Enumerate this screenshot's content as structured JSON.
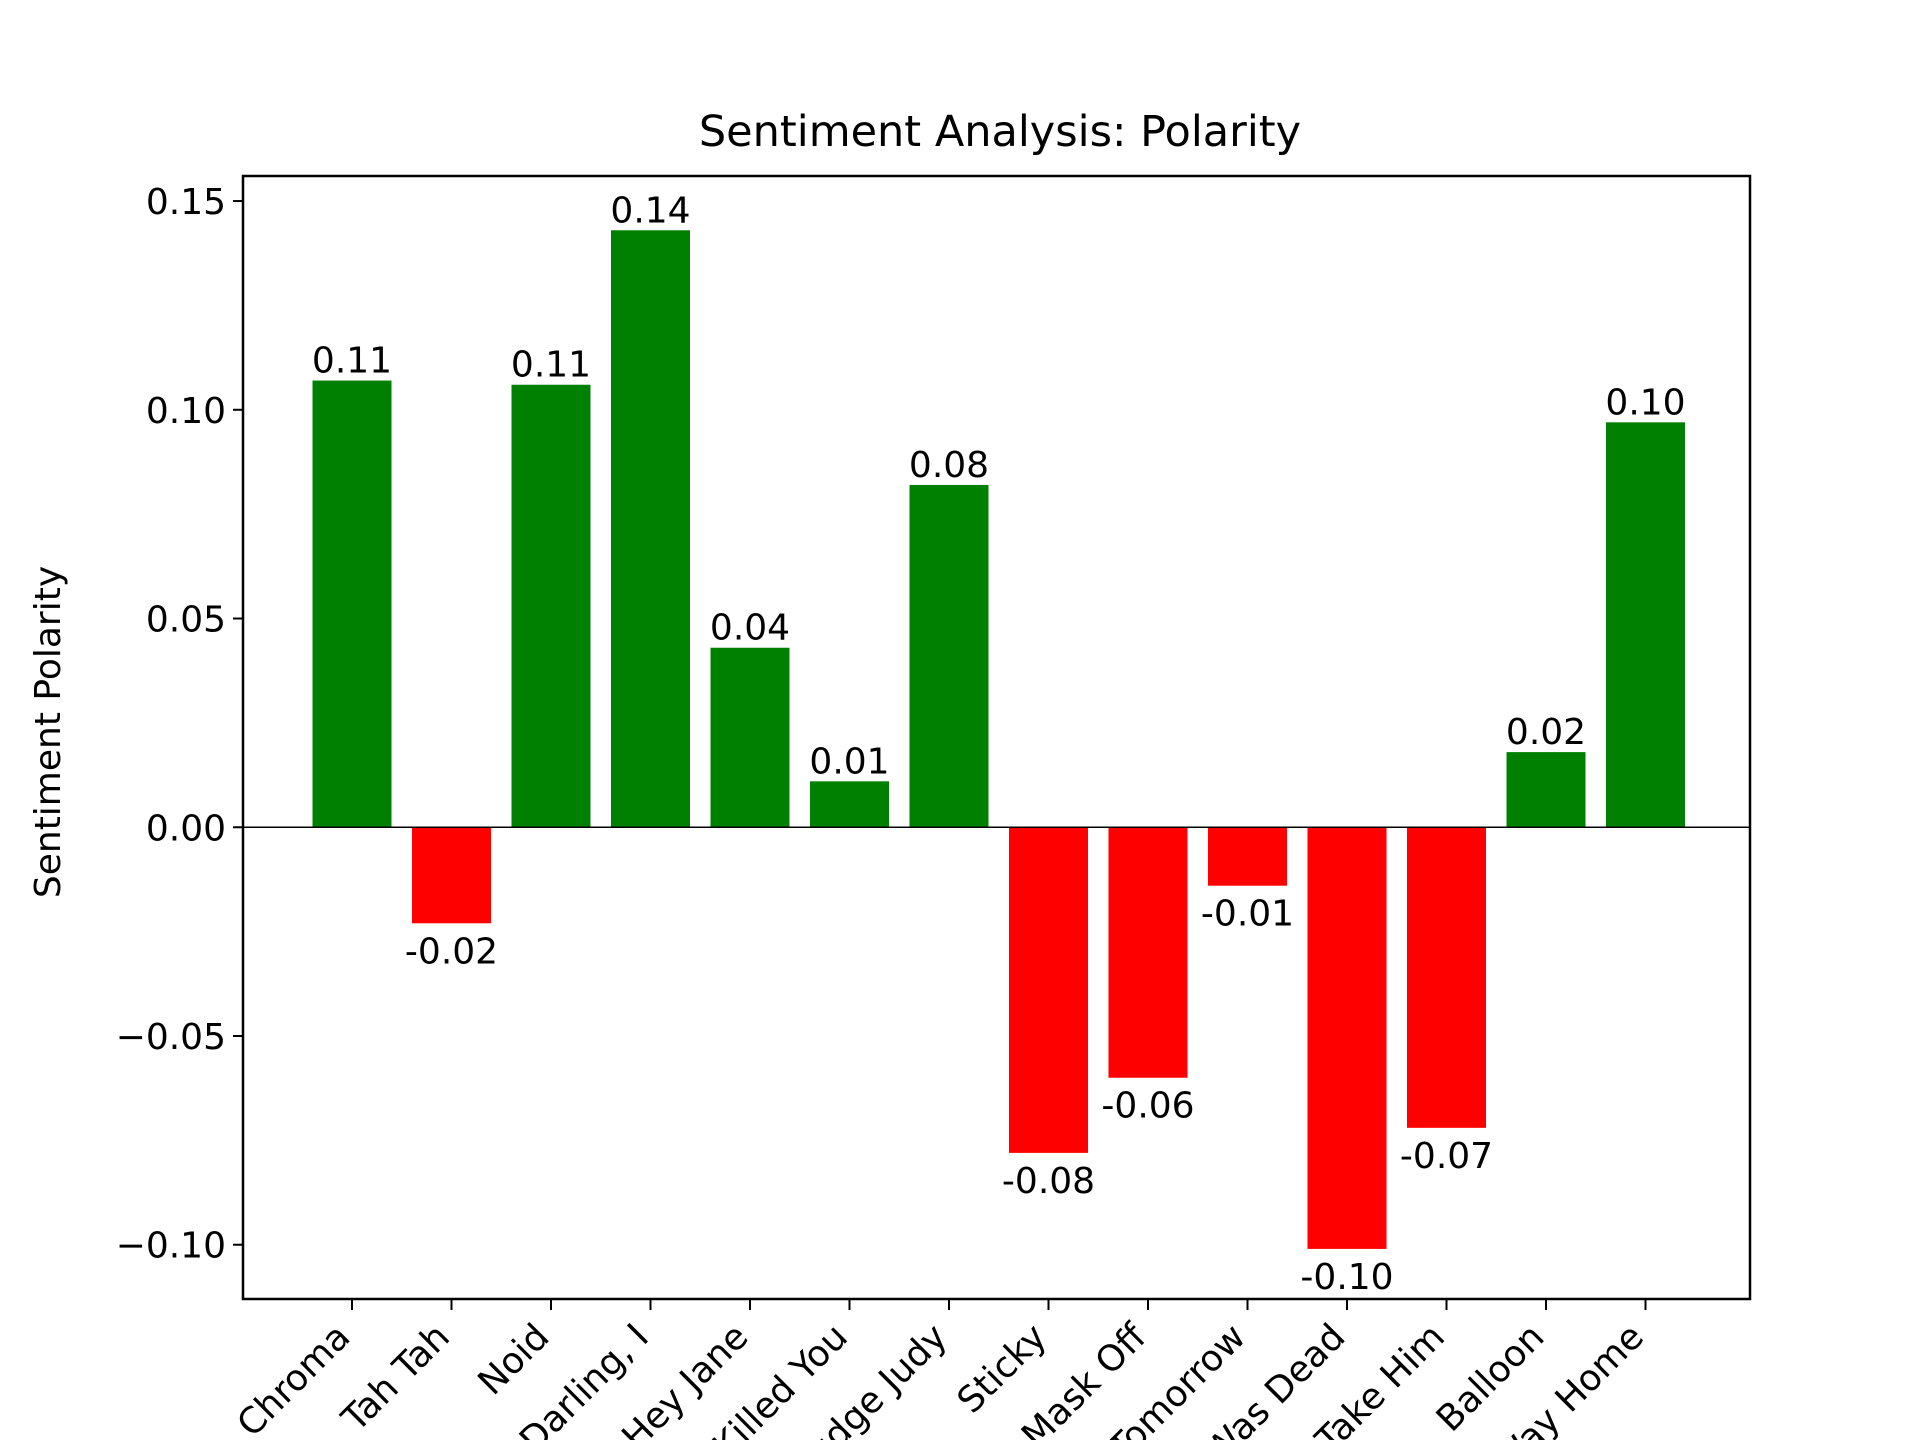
{
  "chart_data": {
    "type": "bar",
    "title": "Sentiment Analysis: Polarity",
    "xlabel": "",
    "ylabel": "Sentiment Polarity",
    "categories": [
      "Chroma",
      "Tah Tah",
      "Noid",
      "Darling, I",
      "Hey Jane",
      "Killed You",
      "Judge Judy",
      "Sticky",
      "Mask Off",
      "Tomorrow",
      "I Was Dead",
      "Take Him",
      "Balloon",
      "Way Home"
    ],
    "values": [
      0.107,
      -0.023,
      0.106,
      0.143,
      0.043,
      0.011,
      0.082,
      -0.078,
      -0.06,
      -0.014,
      -0.101,
      -0.072,
      0.018,
      0.097
    ],
    "data_labels": [
      "0.11",
      "-0.02",
      "0.11",
      "0.14",
      "0.04",
      "0.01",
      "0.08",
      "-0.08",
      "-0.06",
      "-0.01",
      "-0.10",
      "-0.07",
      "0.02",
      "0.10"
    ],
    "ylim": [
      -0.113,
      0.156
    ],
    "yticks": [
      -0.1,
      -0.05,
      0.0,
      0.05,
      0.1,
      0.15
    ],
    "ytick_labels": [
      "−0.10",
      "−0.05",
      "0.00",
      "0.05",
      "0.10",
      "0.15"
    ],
    "grid": false,
    "colors": {
      "positive": "#008000",
      "negative": "#ff0000",
      "axis": "#000000",
      "background": "#ffffff"
    }
  }
}
